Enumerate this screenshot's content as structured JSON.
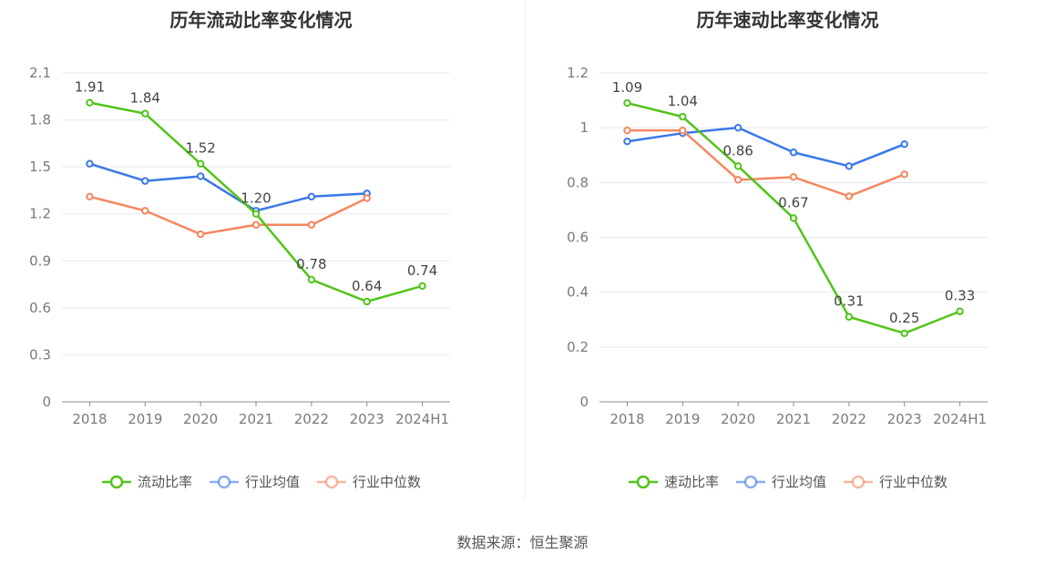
{
  "source_text": "数据来源：恒生聚源",
  "chart_data": [
    {
      "type": "line",
      "title": "历年流动比率变化情况",
      "categories": [
        "2018",
        "2019",
        "2020",
        "2021",
        "2022",
        "2023",
        "2024H1"
      ],
      "ylim": [
        0,
        2.1
      ],
      "yticks": [
        "0",
        "0.3",
        "0.6",
        "0.9",
        "1.2",
        "1.5",
        "1.8",
        "2.1"
      ],
      "ytick_values": [
        0,
        0.3,
        0.6,
        0.9,
        1.2,
        1.5,
        1.8,
        2.1
      ],
      "grid": true,
      "legend_position": "bottom",
      "series": [
        {
          "name": "流动比率",
          "color": "#52c41a",
          "values": [
            1.91,
            1.84,
            1.52,
            1.2,
            0.78,
            0.64,
            0.74
          ],
          "labels": [
            "1.91",
            "1.84",
            "1.52",
            "1.20",
            "0.78",
            "0.64",
            "0.74"
          ]
        },
        {
          "name": "行业均值",
          "color": "#3b78e7",
          "values": [
            1.52,
            1.41,
            1.44,
            1.22,
            1.31,
            1.33,
            null
          ]
        },
        {
          "name": "行业中位数",
          "color": "#f5875f",
          "values": [
            1.31,
            1.22,
            1.07,
            1.13,
            1.13,
            1.3,
            null
          ]
        }
      ]
    },
    {
      "type": "line",
      "title": "历年速动比率变化情况",
      "categories": [
        "2018",
        "2019",
        "2020",
        "2021",
        "2022",
        "2023",
        "2024H1"
      ],
      "ylim": [
        0,
        1.2
      ],
      "yticks": [
        "0",
        "0.2",
        "0.4",
        "0.6",
        "0.8",
        "1",
        "1.2"
      ],
      "ytick_values": [
        0,
        0.2,
        0.4,
        0.6,
        0.8,
        1.0,
        1.2
      ],
      "grid": true,
      "legend_position": "bottom",
      "series": [
        {
          "name": "速动比率",
          "color": "#52c41a",
          "values": [
            1.09,
            1.04,
            0.86,
            0.67,
            0.31,
            0.25,
            0.33
          ],
          "labels": [
            "1.09",
            "1.04",
            "0.86",
            "0.67",
            "0.31",
            "0.25",
            "0.33"
          ]
        },
        {
          "name": "行业均值",
          "color": "#3b78e7",
          "values": [
            0.95,
            0.98,
            1.0,
            0.91,
            0.86,
            0.94,
            null
          ]
        },
        {
          "name": "行业中位数",
          "color": "#f5875f",
          "values": [
            0.99,
            0.99,
            0.81,
            0.82,
            0.75,
            0.83,
            null
          ]
        }
      ]
    }
  ]
}
